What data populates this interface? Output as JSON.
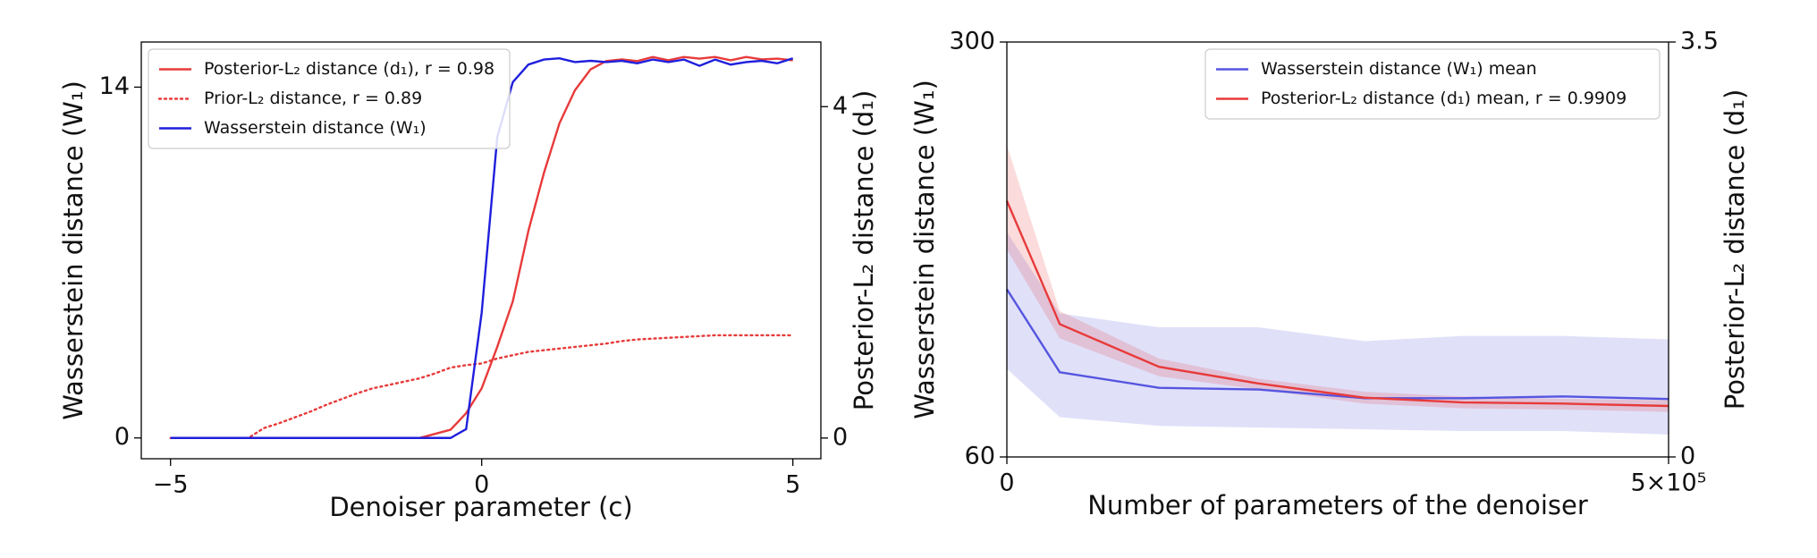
{
  "chart_data": [
    {
      "type": "line",
      "xlabel": "Denoiser parameter (c)",
      "ylabel": "Wasserstein distance (W₁)",
      "y2label": "Posterior-L₂ distance (d₁)",
      "xlim": [
        -5.47,
        5.45
      ],
      "ylim": [
        -0.83,
        15.8
      ],
      "y2lim": [
        -0.25,
        4.78
      ],
      "xticks": [
        {
          "value": -5,
          "label": "−5"
        },
        0,
        5
      ],
      "yticks": [
        0,
        14
      ],
      "y2ticks": [
        0,
        4
      ],
      "grid": false,
      "legend": "upper left",
      "x": [
        -5,
        -4.75,
        -4.5,
        -4.25,
        -4,
        -3.75,
        -3.5,
        -3.25,
        -3,
        -2.75,
        -2.5,
        -2.25,
        -2,
        -1.75,
        -1.5,
        -1.25,
        -1,
        -0.75,
        -0.5,
        -0.25,
        0,
        0.25,
        0.5,
        0.75,
        1,
        1.25,
        1.5,
        1.75,
        2,
        2.25,
        2.5,
        2.75,
        3,
        3.25,
        3.5,
        3.75,
        4,
        4.25,
        4.5,
        4.75,
        5
      ],
      "series": [
        {
          "name": "Posterior-L₂ distance (d₁), r = 0.98",
          "color": "#e83a3a",
          "axis": "y2",
          "linestyle": "solid",
          "values": [
            0,
            0,
            0,
            0,
            0,
            0,
            0,
            0,
            0,
            0,
            0,
            0,
            0,
            0,
            0,
            0,
            0,
            0.05,
            0.1,
            0.3,
            0.6,
            1.1,
            1.65,
            2.5,
            3.2,
            3.8,
            4.2,
            4.45,
            4.55,
            4.57,
            4.55,
            4.6,
            4.56,
            4.6,
            4.58,
            4.6,
            4.56,
            4.6,
            4.57,
            4.58,
            4.56
          ]
        },
        {
          "name": "Prior-L₂ distance, r = 0.89",
          "color": "#e83a3a",
          "axis": "y2",
          "linestyle": "dotted",
          "values": [
            0,
            0,
            0,
            0,
            0,
            0,
            0.12,
            0.18,
            0.25,
            0.32,
            0.4,
            0.47,
            0.54,
            0.6,
            0.64,
            0.68,
            0.72,
            0.78,
            0.85,
            0.88,
            0.9,
            0.96,
            1.0,
            1.04,
            1.06,
            1.08,
            1.1,
            1.12,
            1.14,
            1.17,
            1.19,
            1.2,
            1.21,
            1.22,
            1.23,
            1.24,
            1.24,
            1.24,
            1.24,
            1.24,
            1.24
          ]
        },
        {
          "name": "Wasserstein distance (W₁)",
          "color": "#1f1fdd",
          "axis": "y",
          "linestyle": "solid",
          "values": [
            0,
            0,
            0,
            0,
            0,
            0,
            0,
            0,
            0,
            0,
            0,
            0,
            0,
            0,
            0,
            0,
            0,
            0,
            0,
            0.35,
            5,
            12,
            14.2,
            14.9,
            15.1,
            15.15,
            15,
            15.05,
            15,
            15.05,
            14.95,
            15.1,
            15,
            15.1,
            14.85,
            15.1,
            14.9,
            15,
            15.05,
            14.95,
            15.15
          ]
        }
      ]
    },
    {
      "type": "line",
      "xlabel": "Number of parameters of the denoiser",
      "ylabel": "Wasserstein distance (W₁)",
      "y2label": "Posterior-L₂ distance (d₁)",
      "xlim": [
        0,
        500000
      ],
      "ylim": [
        60,
        300
      ],
      "y2lim": [
        0,
        3.5
      ],
      "xticks": [
        0,
        {
          "value": 500000,
          "label": "5×10⁵"
        }
      ],
      "yticks": [
        60,
        300
      ],
      "y2ticks": [
        0,
        3.5
      ],
      "grid": false,
      "legend": "upper right",
      "x": [
        0,
        40000,
        115000,
        190000,
        270000,
        345000,
        420000,
        500000
      ],
      "series": [
        {
          "name": "Wasserstein distance (W₁) mean",
          "color": "#5555e0",
          "axis": "y",
          "linestyle": "solid",
          "values": [
            157,
            109,
            100,
            99,
            94,
            94,
            95,
            93.5
          ],
          "upper": [
            190,
            143,
            135,
            135,
            127,
            130,
            130,
            128
          ],
          "lower": [
            111,
            83,
            78,
            77,
            76,
            75,
            75,
            73
          ]
        },
        {
          "name": "Posterior-L₂ distance (d₁) mean, r = 0.9909",
          "color": "#e83a3a",
          "axis": "y2",
          "linestyle": "solid",
          "values": [
            2.16,
            1.12,
            0.76,
            0.62,
            0.5,
            0.46,
            0.45,
            0.43
          ],
          "upper": [
            2.63,
            1.23,
            0.83,
            0.66,
            0.55,
            0.51,
            0.49,
            0.48
          ],
          "lower": [
            1.75,
            1.0,
            0.68,
            0.57,
            0.45,
            0.41,
            0.4,
            0.38
          ]
        }
      ]
    }
  ]
}
